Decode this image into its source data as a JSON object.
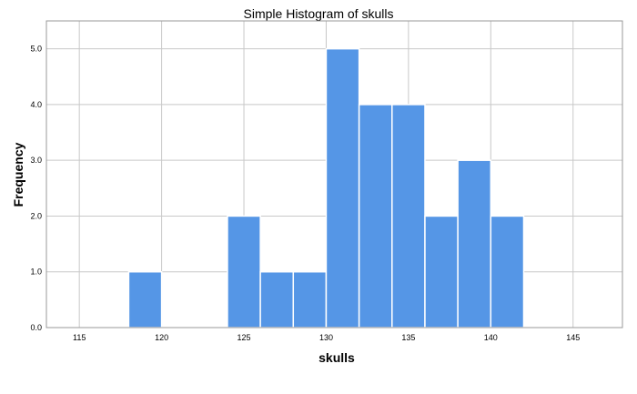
{
  "chart_data": {
    "type": "bar",
    "title": "Simple Histogram of skulls",
    "xlabel": "skulls",
    "ylabel": "Frequency",
    "xlim": [
      113,
      148
    ],
    "ylim": [
      0,
      5.5
    ],
    "x_ticks": [
      115,
      120,
      125,
      130,
      135,
      140,
      145
    ],
    "y_ticks": [
      "0.0",
      "1.0",
      "2.0",
      "3.0",
      "4.0",
      "5.0"
    ],
    "bin_width": 2,
    "bins": [
      {
        "start": 118,
        "end": 120,
        "count": 1
      },
      {
        "start": 124,
        "end": 126,
        "count": 2
      },
      {
        "start": 126,
        "end": 128,
        "count": 1
      },
      {
        "start": 128,
        "end": 130,
        "count": 1
      },
      {
        "start": 130,
        "end": 132,
        "count": 5
      },
      {
        "start": 132,
        "end": 134,
        "count": 4
      },
      {
        "start": 134,
        "end": 136,
        "count": 4
      },
      {
        "start": 136,
        "end": 138,
        "count": 2
      },
      {
        "start": 138,
        "end": 140,
        "count": 3
      },
      {
        "start": 140,
        "end": 142,
        "count": 2
      }
    ],
    "bar_color": "#5596e6",
    "grid": true
  }
}
